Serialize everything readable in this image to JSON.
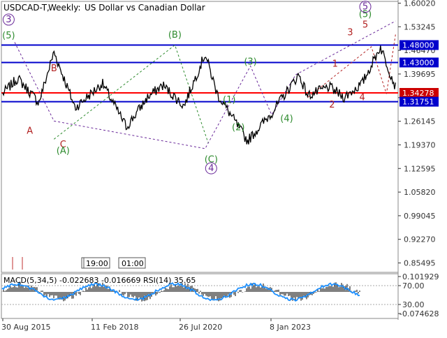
{
  "header": {
    "symbol": "USDCAD-T,",
    "timeframe": "Weekly:",
    "description": "US Dollar vs Canadian Dollar"
  },
  "price_axis": {
    "ticks": [
      "1.60020",
      "1.53245",
      "1.46470",
      "1.39695",
      "1.32920",
      "1.26145",
      "1.19370",
      "1.12595",
      "1.05820",
      "0.99045",
      "0.92270",
      "0.85495"
    ],
    "tick_values": [
      1.6002,
      1.53245,
      1.4647,
      1.39695,
      1.3292,
      1.26145,
      1.1937,
      1.12595,
      1.0582,
      0.99045,
      0.9227,
      0.85495
    ],
    "range": [
      0.828,
      1.6052
    ]
  },
  "levels": [
    {
      "label": "1.48000",
      "value": 1.48,
      "color": "#0000cc",
      "line": "#0000cc"
    },
    {
      "label": "1.43000",
      "value": 1.43,
      "color": "#0000cc",
      "line": "#0000cc"
    },
    {
      "label": "1.34278",
      "value": 1.3428,
      "color": "#cc0000",
      "line": "#ff0000"
    },
    {
      "label": "1.31751",
      "value": 1.3175,
      "color": "#0000cc",
      "line": "#0000cc"
    }
  ],
  "time_boxes": [
    "19:00",
    "01:00"
  ],
  "x_axis": {
    "labels": [
      "30 Aug 2015",
      "11 Feb 2018",
      "26 Jul 2020",
      "8 Jan 2023"
    ]
  },
  "indicator": {
    "label": "MACD(5,34,5) -0.022683 -0.016669 RSI(14) 35.65",
    "ticks": [
      "0.101929",
      "70.00",
      "30.00",
      "-0.074628"
    ]
  },
  "colors": {
    "grid_text": "#333333",
    "level_blue": "#0000cc",
    "level_red": "#ff0000",
    "wave_green": "#2e8b2e",
    "wave_red": "#b22222",
    "wave_purple": "#6a2a9a",
    "rsi": "#1e90ff",
    "macd": "#000000"
  },
  "chart_data": {
    "type": "line",
    "title": "USDCAD-T, Weekly: US Dollar vs Canadian Dollar",
    "xlabel": "",
    "ylabel": "",
    "ylim": [
      0.828,
      1.6052
    ],
    "x": [
      "2014-08",
      "2015-01",
      "2015-08",
      "2016-01",
      "2016-08",
      "2017-05",
      "2018-01",
      "2018-08",
      "2019-01",
      "2019-08",
      "2020-03",
      "2020-07",
      "2021-05",
      "2022-01",
      "2022-10",
      "2023-01",
      "2023-08",
      "2024-01",
      "2024-07",
      "2025-01",
      "2025-06"
    ],
    "series": [
      {
        "name": "USDCAD-T",
        "values": [
          1.34,
          1.385,
          1.315,
          1.46,
          1.3,
          1.37,
          1.245,
          1.33,
          1.365,
          1.305,
          1.455,
          1.34,
          1.205,
          1.285,
          1.395,
          1.335,
          1.36,
          1.33,
          1.37,
          1.475,
          1.36
        ]
      }
    ],
    "wave_labels": [
      {
        "text": "(5)",
        "color": "green",
        "price": 1.499
      },
      {
        "text": "3",
        "color": "purple",
        "price": 1.545
      },
      {
        "text": "A",
        "color": "red",
        "price": 1.2258
      },
      {
        "text": "B",
        "color": "red",
        "price": 1.4048
      },
      {
        "text": "C",
        "color": "red",
        "price": 1.1863
      },
      {
        "text": "(A)",
        "color": "green",
        "price": 1.1683
      },
      {
        "text": "(B)",
        "color": "green",
        "price": 1.5012
      },
      {
        "text": "(C)",
        "color": "green",
        "price": 1.1437
      },
      {
        "text": "4",
        "color": "purple",
        "price": 1.1184
      },
      {
        "text": "(1)",
        "color": "green",
        "price": 1.3152
      },
      {
        "text": "(2)",
        "color": "green",
        "price": 1.2358
      },
      {
        "text": "(3)",
        "color": "green",
        "price": 1.4242
      },
      {
        "text": "(4)",
        "color": "green",
        "price": 1.2604
      },
      {
        "text": "1",
        "color": "red",
        "price": 1.4183
      },
      {
        "text": "2",
        "color": "red",
        "price": 1.3006
      },
      {
        "text": "3",
        "color": "red",
        "price": 1.5078
      },
      {
        "text": "4",
        "color": "red",
        "price": 1.3219
      },
      {
        "text": "5",
        "color": "red",
        "price": 1.5302
      },
      {
        "text": "(5)",
        "color": "green",
        "price": 1.5598
      },
      {
        "text": "5",
        "color": "purple",
        "price": 1.5818
      }
    ]
  }
}
